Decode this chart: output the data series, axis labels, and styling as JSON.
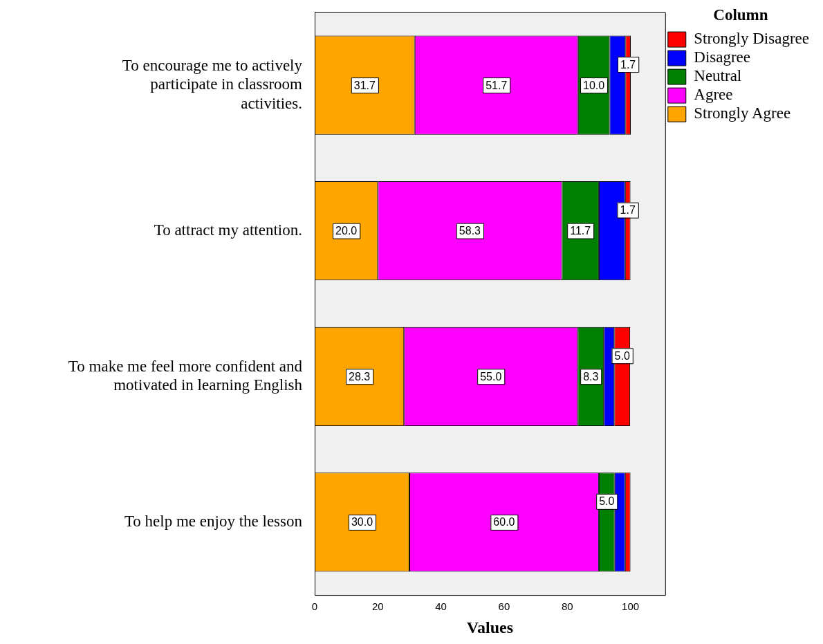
{
  "chart_data": {
    "type": "bar",
    "orientation": "horizontal",
    "stacked": true,
    "xlabel": "Values",
    "legend_title": "Column",
    "legend": "top right",
    "grid": false,
    "categories": [
      "To encourage me to actively participate in classroom activities.",
      "To attract my attention.",
      "To make me feel more confident and motivated in learning English",
      "To help me enjoy the lesson"
    ],
    "xlim": [
      0,
      111
    ],
    "xticks": [
      0,
      20,
      40,
      60,
      80,
      100
    ],
    "series": [
      {
        "name": "Strongly Agree",
        "color": "#ffa500",
        "values": [
          31.7,
          20.0,
          28.3,
          30.0
        ],
        "value_labels": [
          "31.7",
          "20.0",
          "28.3",
          "30.0"
        ]
      },
      {
        "name": "Agree",
        "color": "#ff00ff",
        "values": [
          51.7,
          58.3,
          55.0,
          60.0
        ],
        "value_labels": [
          "51.7",
          "58.3",
          "55.0",
          "60.0"
        ]
      },
      {
        "name": "Neutral",
        "color": "#008000",
        "values": [
          10.0,
          11.7,
          8.3,
          5.0
        ],
        "value_labels": [
          "10.0",
          "11.7",
          "8.3",
          "5.0"
        ]
      },
      {
        "name": "Disagree",
        "color": "#0000ff",
        "values": [
          5.0,
          8.3,
          3.3,
          3.3
        ],
        "value_labels": [
          null,
          null,
          null,
          null
        ]
      },
      {
        "name": "Strongly Disagree",
        "color": "#ff0000",
        "values": [
          1.7,
          1.7,
          5.0,
          1.7
        ],
        "value_labels": [
          "1.7",
          "1.7",
          "5.0",
          null
        ]
      }
    ]
  }
}
